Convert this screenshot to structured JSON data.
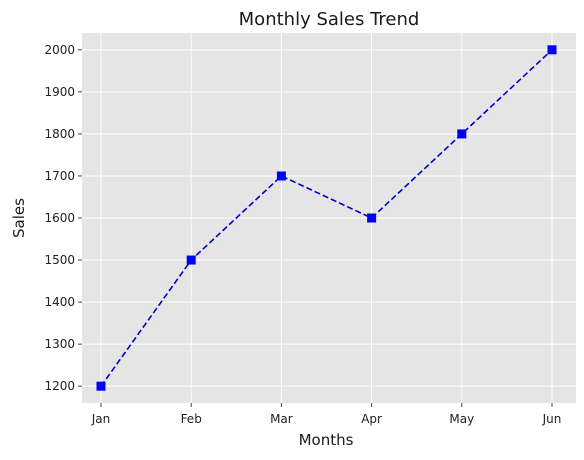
{
  "chart_data": {
    "type": "line",
    "title": "Monthly Sales Trend",
    "xlabel": "Months",
    "ylabel": "Sales",
    "categories": [
      "Jan",
      "Feb",
      "Mar",
      "Apr",
      "May",
      "Jun"
    ],
    "series": [
      {
        "values": [
          1200,
          1500,
          1700,
          1600,
          1800,
          2000
        ]
      }
    ],
    "ylim": [
      1160,
      2040
    ],
    "yticks": [
      1200,
      1300,
      1400,
      1500,
      1600,
      1700,
      1800,
      1900,
      2000
    ],
    "grid": true,
    "line_style": "dashed",
    "marker": "square",
    "colors": {
      "line": "#0000cc",
      "marker": "#0000ff",
      "plot_background": "#e5e5e5",
      "grid": "#ffffff"
    }
  }
}
